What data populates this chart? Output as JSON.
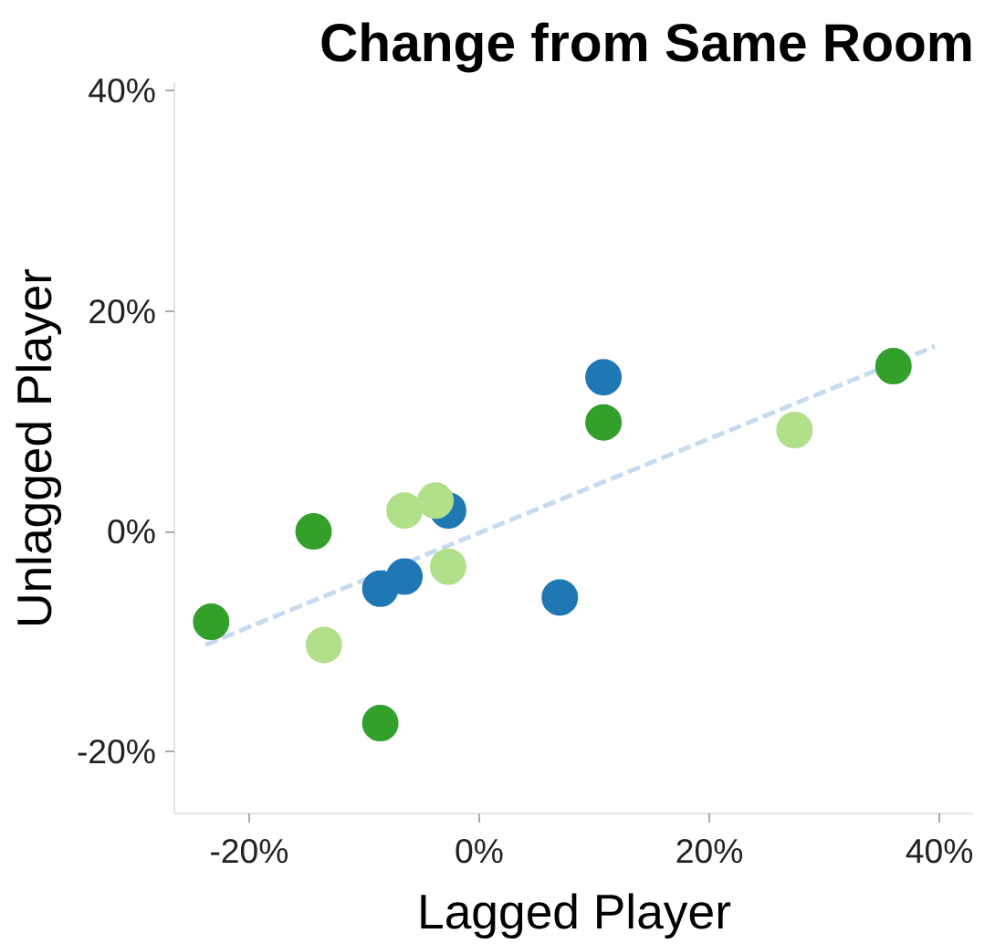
{
  "chart_data": {
    "type": "scatter",
    "title": "Change from Same Room",
    "xlabel": "Lagged Player",
    "ylabel": "Unlagged Player",
    "xlim": [
      -26.5,
      43
    ],
    "ylim": [
      -25.6,
      40.7
    ],
    "xticks": [
      {
        "value": -20,
        "label": "-20%"
      },
      {
        "value": 0,
        "label": "0%"
      },
      {
        "value": 20,
        "label": "20%"
      },
      {
        "value": 40,
        "label": "40%"
      }
    ],
    "yticks": [
      {
        "value": -20,
        "label": "-20%"
      },
      {
        "value": 0,
        "label": "0%"
      },
      {
        "value": 20,
        "label": "20%"
      },
      {
        "value": 40,
        "label": "40%"
      }
    ],
    "grid": false,
    "marker": "circle",
    "series": [
      {
        "color": "#1f78b4",
        "x": [
          10.8,
          -2.7,
          -8.6,
          -6.5,
          7.0
        ],
        "values": [
          14.0,
          1.9,
          -5.2,
          -4.1,
          -6.0
        ]
      },
      {
        "color": "#33a02c",
        "x": [
          -23.3,
          -14.4,
          -8.6,
          10.8,
          36.0
        ],
        "values": [
          -8.2,
          0.0,
          -17.4,
          9.9,
          15.0
        ]
      },
      {
        "color": "#b2df8a",
        "x": [
          -13.5,
          -6.5,
          -3.8,
          -2.7,
          27.4
        ],
        "values": [
          -10.3,
          1.9,
          2.8,
          -3.2,
          9.2
        ]
      },
      {
        "type": "line",
        "marker": "none",
        "line_style": "dashed",
        "color": "#c6dbef",
        "x": [
          -23.8,
          39.6
        ],
        "values": [
          -10.3,
          16.8
        ]
      }
    ]
  }
}
